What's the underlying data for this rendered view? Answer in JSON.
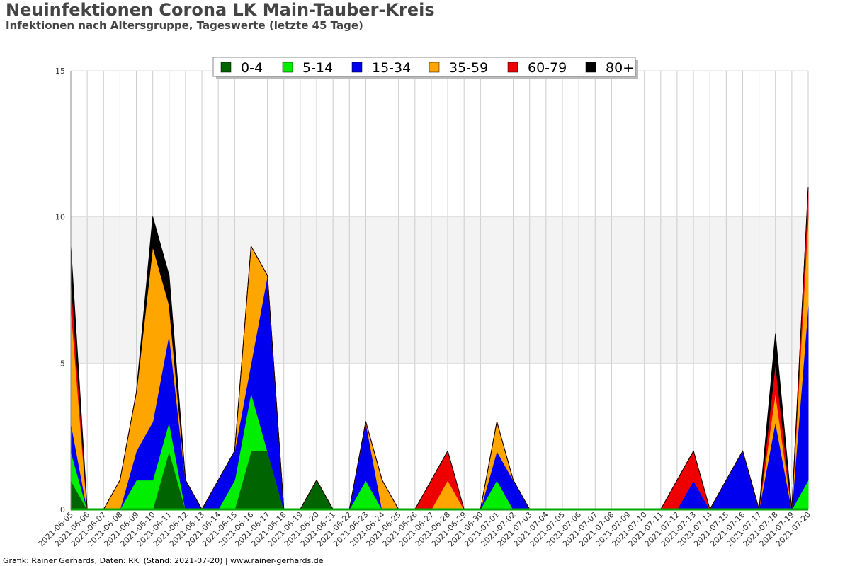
{
  "header": {
    "title": "Neuinfektionen Corona LK Main-Tauber-Kreis",
    "subtitle": "Infektionen nach Altersgruppe, Tageswerte (letzte 45 Tage)"
  },
  "footer": {
    "credit": "Grafik: Rainer Gerhards, Daten: RKI (Stand: 2021-07-20) | www.rainer-gerhards.de"
  },
  "chart_data": {
    "type": "area",
    "stacked": true,
    "ylim": [
      0,
      15
    ],
    "yticks": [
      0,
      5,
      10,
      15
    ],
    "grid": true,
    "band": [
      5,
      10
    ],
    "colors": {
      "band": "#f3f3f3",
      "grid": "#cccccc",
      "baseline": "#00aa00"
    },
    "legend_position": "top-center",
    "x": [
      "2021-06-05",
      "2021-06-06",
      "2021-06-07",
      "2021-06-08",
      "2021-06-09",
      "2021-06-10",
      "2021-06-11",
      "2021-06-12",
      "2021-06-13",
      "2021-06-14",
      "2021-06-15",
      "2021-06-16",
      "2021-06-17",
      "2021-06-18",
      "2021-06-19",
      "2021-06-20",
      "2021-06-21",
      "2021-06-22",
      "2021-06-23",
      "2021-06-24",
      "2021-06-25",
      "2021-06-26",
      "2021-06-27",
      "2021-06-28",
      "2021-06-29",
      "2021-06-30",
      "2021-07-01",
      "2021-07-02",
      "2021-07-03",
      "2021-07-04",
      "2021-07-05",
      "2021-07-06",
      "2021-07-07",
      "2021-07-08",
      "2021-07-09",
      "2021-07-10",
      "2021-07-11",
      "2021-07-12",
      "2021-07-13",
      "2021-07-14",
      "2021-07-15",
      "2021-07-16",
      "2021-07-17",
      "2021-07-18",
      "2021-07-19",
      "2021-07-20"
    ],
    "series": [
      {
        "name": "0-4",
        "color": "#006400",
        "values": [
          1,
          0,
          0,
          0,
          0,
          0,
          2,
          0,
          0,
          0,
          0,
          2,
          2,
          0,
          0,
          1,
          0,
          0,
          0,
          0,
          0,
          0,
          0,
          0,
          0,
          0,
          0,
          0,
          0,
          0,
          0,
          0,
          0,
          0,
          0,
          0,
          0,
          0,
          0,
          0,
          0,
          0,
          0,
          0,
          0,
          0
        ]
      },
      {
        "name": "5-14",
        "color": "#00ee00",
        "values": [
          1,
          0,
          0,
          0,
          1,
          1,
          1,
          0,
          0,
          0,
          1,
          2,
          0,
          0,
          0,
          0,
          0,
          0,
          1,
          0,
          0,
          0,
          0,
          0,
          0,
          0,
          1,
          0,
          0,
          0,
          0,
          0,
          0,
          0,
          0,
          0,
          0,
          0,
          0,
          0,
          0,
          0,
          0,
          0,
          0,
          1
        ]
      },
      {
        "name": "15-34",
        "color": "#0000ee",
        "values": [
          1,
          0,
          0,
          0,
          1,
          2,
          3,
          1,
          0,
          1,
          1,
          1,
          6,
          0,
          0,
          0,
          0,
          0,
          2,
          0,
          0,
          0,
          0,
          0,
          0,
          0,
          1,
          1,
          0,
          0,
          0,
          0,
          0,
          0,
          0,
          0,
          0,
          0,
          1,
          0,
          1,
          2,
          0,
          3,
          0,
          6
        ]
      },
      {
        "name": "35-59",
        "color": "#ffa500",
        "values": [
          4,
          0,
          0,
          1,
          2,
          6,
          1,
          0,
          0,
          0,
          0,
          4,
          0,
          0,
          0,
          0,
          0,
          0,
          0,
          1,
          0,
          0,
          0,
          1,
          0,
          0,
          1,
          0,
          0,
          0,
          0,
          0,
          0,
          0,
          0,
          0,
          0,
          0,
          0,
          0,
          0,
          0,
          0,
          1,
          0,
          3
        ]
      },
      {
        "name": "60-79",
        "color": "#ee0000",
        "values": [
          1,
          0,
          0,
          0,
          0,
          0,
          0,
          0,
          0,
          0,
          0,
          0,
          0,
          0,
          0,
          0,
          0,
          0,
          0,
          0,
          0,
          0,
          1,
          1,
          0,
          0,
          0,
          0,
          0,
          0,
          0,
          0,
          0,
          0,
          0,
          0,
          0,
          1,
          1,
          0,
          0,
          0,
          0,
          1,
          0,
          1
        ]
      },
      {
        "name": "80+",
        "color": "#000000",
        "values": [
          1,
          0,
          0,
          0,
          0,
          1,
          1,
          0,
          0,
          0,
          0,
          0,
          0,
          0,
          0,
          0,
          0,
          0,
          0,
          0,
          0,
          0,
          0,
          0,
          0,
          0,
          0,
          0,
          0,
          0,
          0,
          0,
          0,
          0,
          0,
          0,
          0,
          0,
          0,
          0,
          0,
          0,
          0,
          1,
          0,
          0
        ]
      }
    ]
  }
}
